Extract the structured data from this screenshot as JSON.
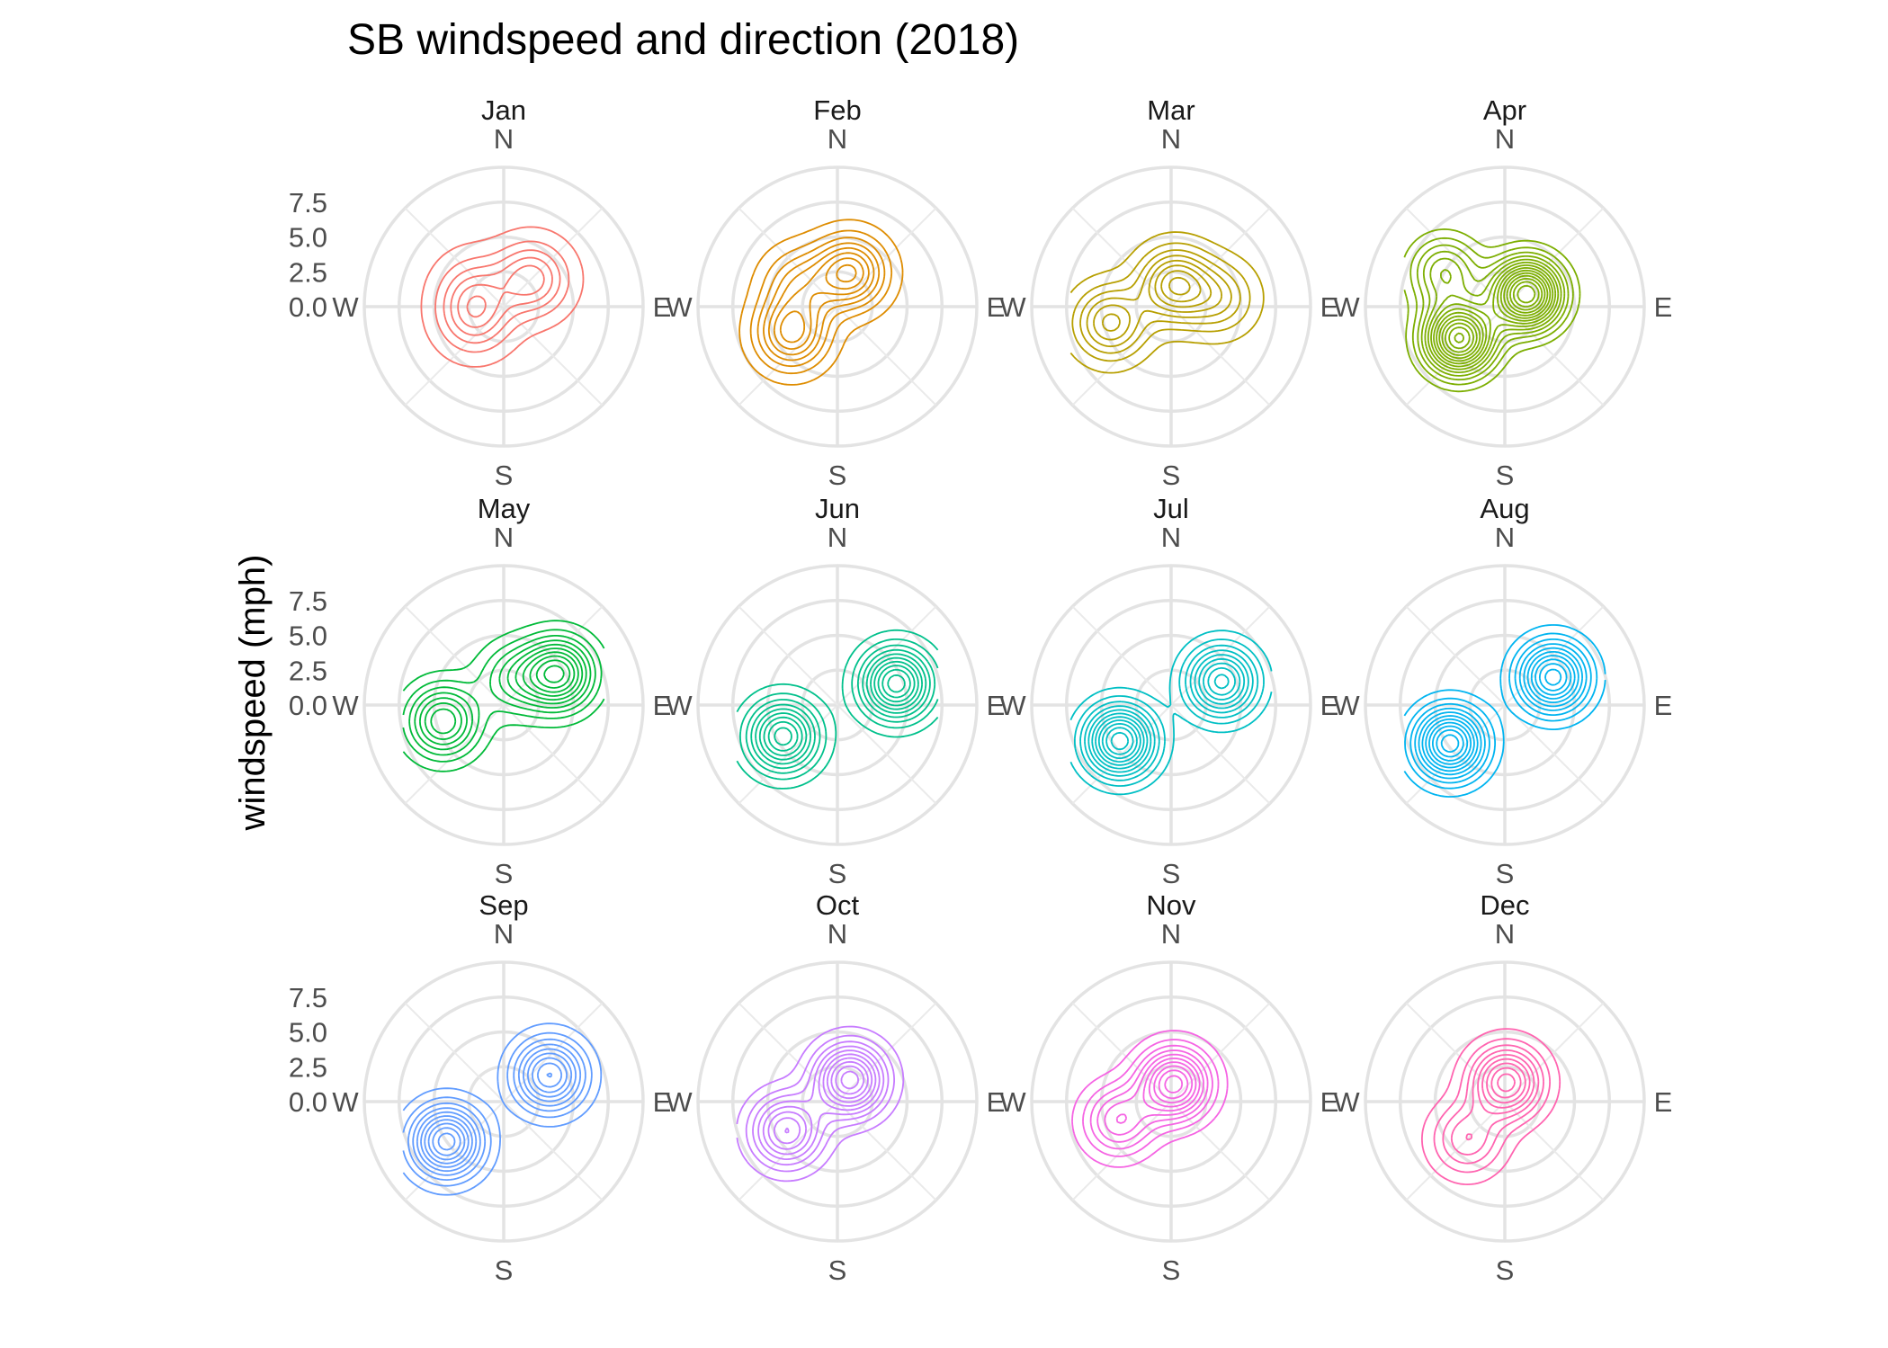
{
  "chart_data": {
    "type": "polar-density-contour",
    "title": "SB windspeed and direction (2018)",
    "ylabel": "windspeed (mph)",
    "xlabel": "",
    "directions": [
      "N",
      "E",
      "S",
      "W"
    ],
    "radial_ticks": [
      "0.0",
      "2.5",
      "5.0",
      "7.5"
    ],
    "radial_tick_values": [
      0,
      2.5,
      5,
      7.5
    ],
    "radial_max": 10,
    "grid": true,
    "legend": "none",
    "panels": [
      {
        "name": "Jan",
        "color": "#F8766D",
        "levels": 6,
        "peaks": [
          {
            "dir": 45,
            "speed": 2.8,
            "w": 1.0
          },
          {
            "dir": 250,
            "speed": 2.2,
            "w": 0.8
          },
          {
            "dir": 300,
            "speed": 2.5,
            "w": 0.5
          }
        ]
      },
      {
        "name": "Feb",
        "color": "#DE8C00",
        "levels": 8,
        "peaks": [
          {
            "dir": 20,
            "speed": 2.6,
            "w": 1.0
          },
          {
            "dir": 240,
            "speed": 3.8,
            "w": 0.9
          },
          {
            "dir": 300,
            "speed": 3.2,
            "w": 0.5
          }
        ]
      },
      {
        "name": "Mar",
        "color": "#B79F00",
        "levels": 8,
        "peaks": [
          {
            "dir": 10,
            "speed": 1.6,
            "w": 1.0
          },
          {
            "dir": 255,
            "speed": 4.5,
            "w": 0.8
          },
          {
            "dir": 80,
            "speed": 3.5,
            "w": 0.5
          }
        ]
      },
      {
        "name": "Apr",
        "color": "#7CAE00",
        "levels": 14,
        "peaks": [
          {
            "dir": 60,
            "speed": 1.8,
            "w": 1.0
          },
          {
            "dir": 235,
            "speed": 4.0,
            "w": 0.95
          },
          {
            "dir": 300,
            "speed": 5.0,
            "w": 0.4
          }
        ]
      },
      {
        "name": "May",
        "color": "#00BA38",
        "levels": 10,
        "peaks": [
          {
            "dir": 60,
            "speed": 4.5,
            "w": 1.0
          },
          {
            "dir": 255,
            "speed": 4.5,
            "w": 0.8
          },
          {
            "dir": 20,
            "speed": 2.0,
            "w": 0.4
          }
        ]
      },
      {
        "name": "Jun",
        "color": "#00C08B",
        "levels": 10,
        "peaks": [
          {
            "dir": 70,
            "speed": 4.5,
            "w": 1.0
          },
          {
            "dir": 240,
            "speed": 4.5,
            "w": 0.9
          }
        ]
      },
      {
        "name": "Jul",
        "color": "#00BFC4",
        "levels": 11,
        "peaks": [
          {
            "dir": 65,
            "speed": 4.0,
            "w": 0.8
          },
          {
            "dir": 235,
            "speed": 4.5,
            "w": 1.0
          }
        ]
      },
      {
        "name": "Aug",
        "color": "#00B4F0",
        "levels": 11,
        "peaks": [
          {
            "dir": 60,
            "speed": 4.0,
            "w": 0.9
          },
          {
            "dir": 235,
            "speed": 4.8,
            "w": 1.0
          }
        ]
      },
      {
        "name": "Sep",
        "color": "#619CFF",
        "levels": 10,
        "peaks": [
          {
            "dir": 60,
            "speed": 3.8,
            "w": 0.85
          },
          {
            "dir": 235,
            "speed": 5.0,
            "w": 1.0
          }
        ]
      },
      {
        "name": "Oct",
        "color": "#C77CFF",
        "levels": 10,
        "peaks": [
          {
            "dir": 30,
            "speed": 1.8,
            "w": 1.0
          },
          {
            "dir": 240,
            "speed": 4.2,
            "w": 0.75
          }
        ]
      },
      {
        "name": "Nov",
        "color": "#F564E3",
        "levels": 10,
        "peaks": [
          {
            "dir": 10,
            "speed": 1.3,
            "w": 1.0
          },
          {
            "dir": 250,
            "speed": 4.0,
            "w": 0.55
          }
        ]
      },
      {
        "name": "Dec",
        "color": "#FF64B0",
        "levels": 9,
        "peaks": [
          {
            "dir": 5,
            "speed": 1.4,
            "w": 1.0
          },
          {
            "dir": 225,
            "speed": 3.8,
            "w": 0.5
          }
        ]
      }
    ]
  }
}
